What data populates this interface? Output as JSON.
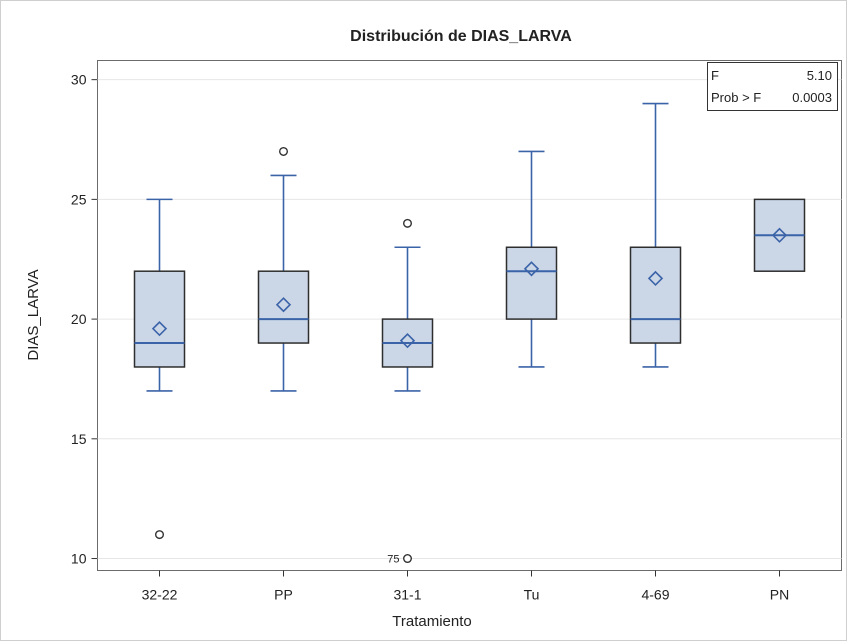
{
  "chart_data": {
    "type": "boxplot",
    "title": "Distribución de DIAS_LARVA",
    "xlabel": "Tratamiento",
    "ylabel": "DIAS_LARVA",
    "ylim": [
      9.5,
      30.8
    ],
    "yticks": [
      10,
      15,
      20,
      25,
      30
    ],
    "grid": true,
    "categories": [
      "32-22",
      "PP",
      "31-1",
      "Tu",
      "4-69",
      "PN"
    ],
    "boxes": [
      {
        "category": "32-22",
        "min": 17,
        "q1": 18,
        "median": 19,
        "q3": 22,
        "max": 25,
        "mean": 19.6,
        "outliers": [
          {
            "value": 11,
            "label": ""
          }
        ]
      },
      {
        "category": "PP",
        "min": 17,
        "q1": 19,
        "median": 20,
        "q3": 22,
        "max": 26,
        "mean": 20.6,
        "outliers": [
          {
            "value": 27,
            "label": ""
          }
        ]
      },
      {
        "category": "31-1",
        "min": 17,
        "q1": 18,
        "median": 19,
        "q3": 20,
        "max": 23,
        "mean": 19.1,
        "outliers": [
          {
            "value": 24,
            "label": ""
          },
          {
            "value": 10,
            "label": "75"
          }
        ]
      },
      {
        "category": "Tu",
        "min": 18,
        "q1": 20,
        "median": 22,
        "q3": 23,
        "max": 27,
        "mean": 22.1,
        "outliers": []
      },
      {
        "category": "4-69",
        "min": 18,
        "q1": 19,
        "median": 20,
        "q3": 23,
        "max": 29,
        "mean": 21.7,
        "outliers": []
      },
      {
        "category": "PN",
        "min": 22,
        "q1": 22,
        "median": 23.5,
        "q3": 25,
        "max": 25,
        "mean": 23.5,
        "outliers": []
      }
    ],
    "inset": {
      "placement": "top-right",
      "rows": [
        {
          "label": "F",
          "value": "5.10"
        },
        {
          "label": "Prob > F",
          "value": "0.0003"
        }
      ]
    },
    "colors": {
      "box_fill": "#cbd6e7",
      "box_stroke": "#2e2e2e",
      "accent": "#3b63a8",
      "grid": "#e6e6e6"
    }
  }
}
